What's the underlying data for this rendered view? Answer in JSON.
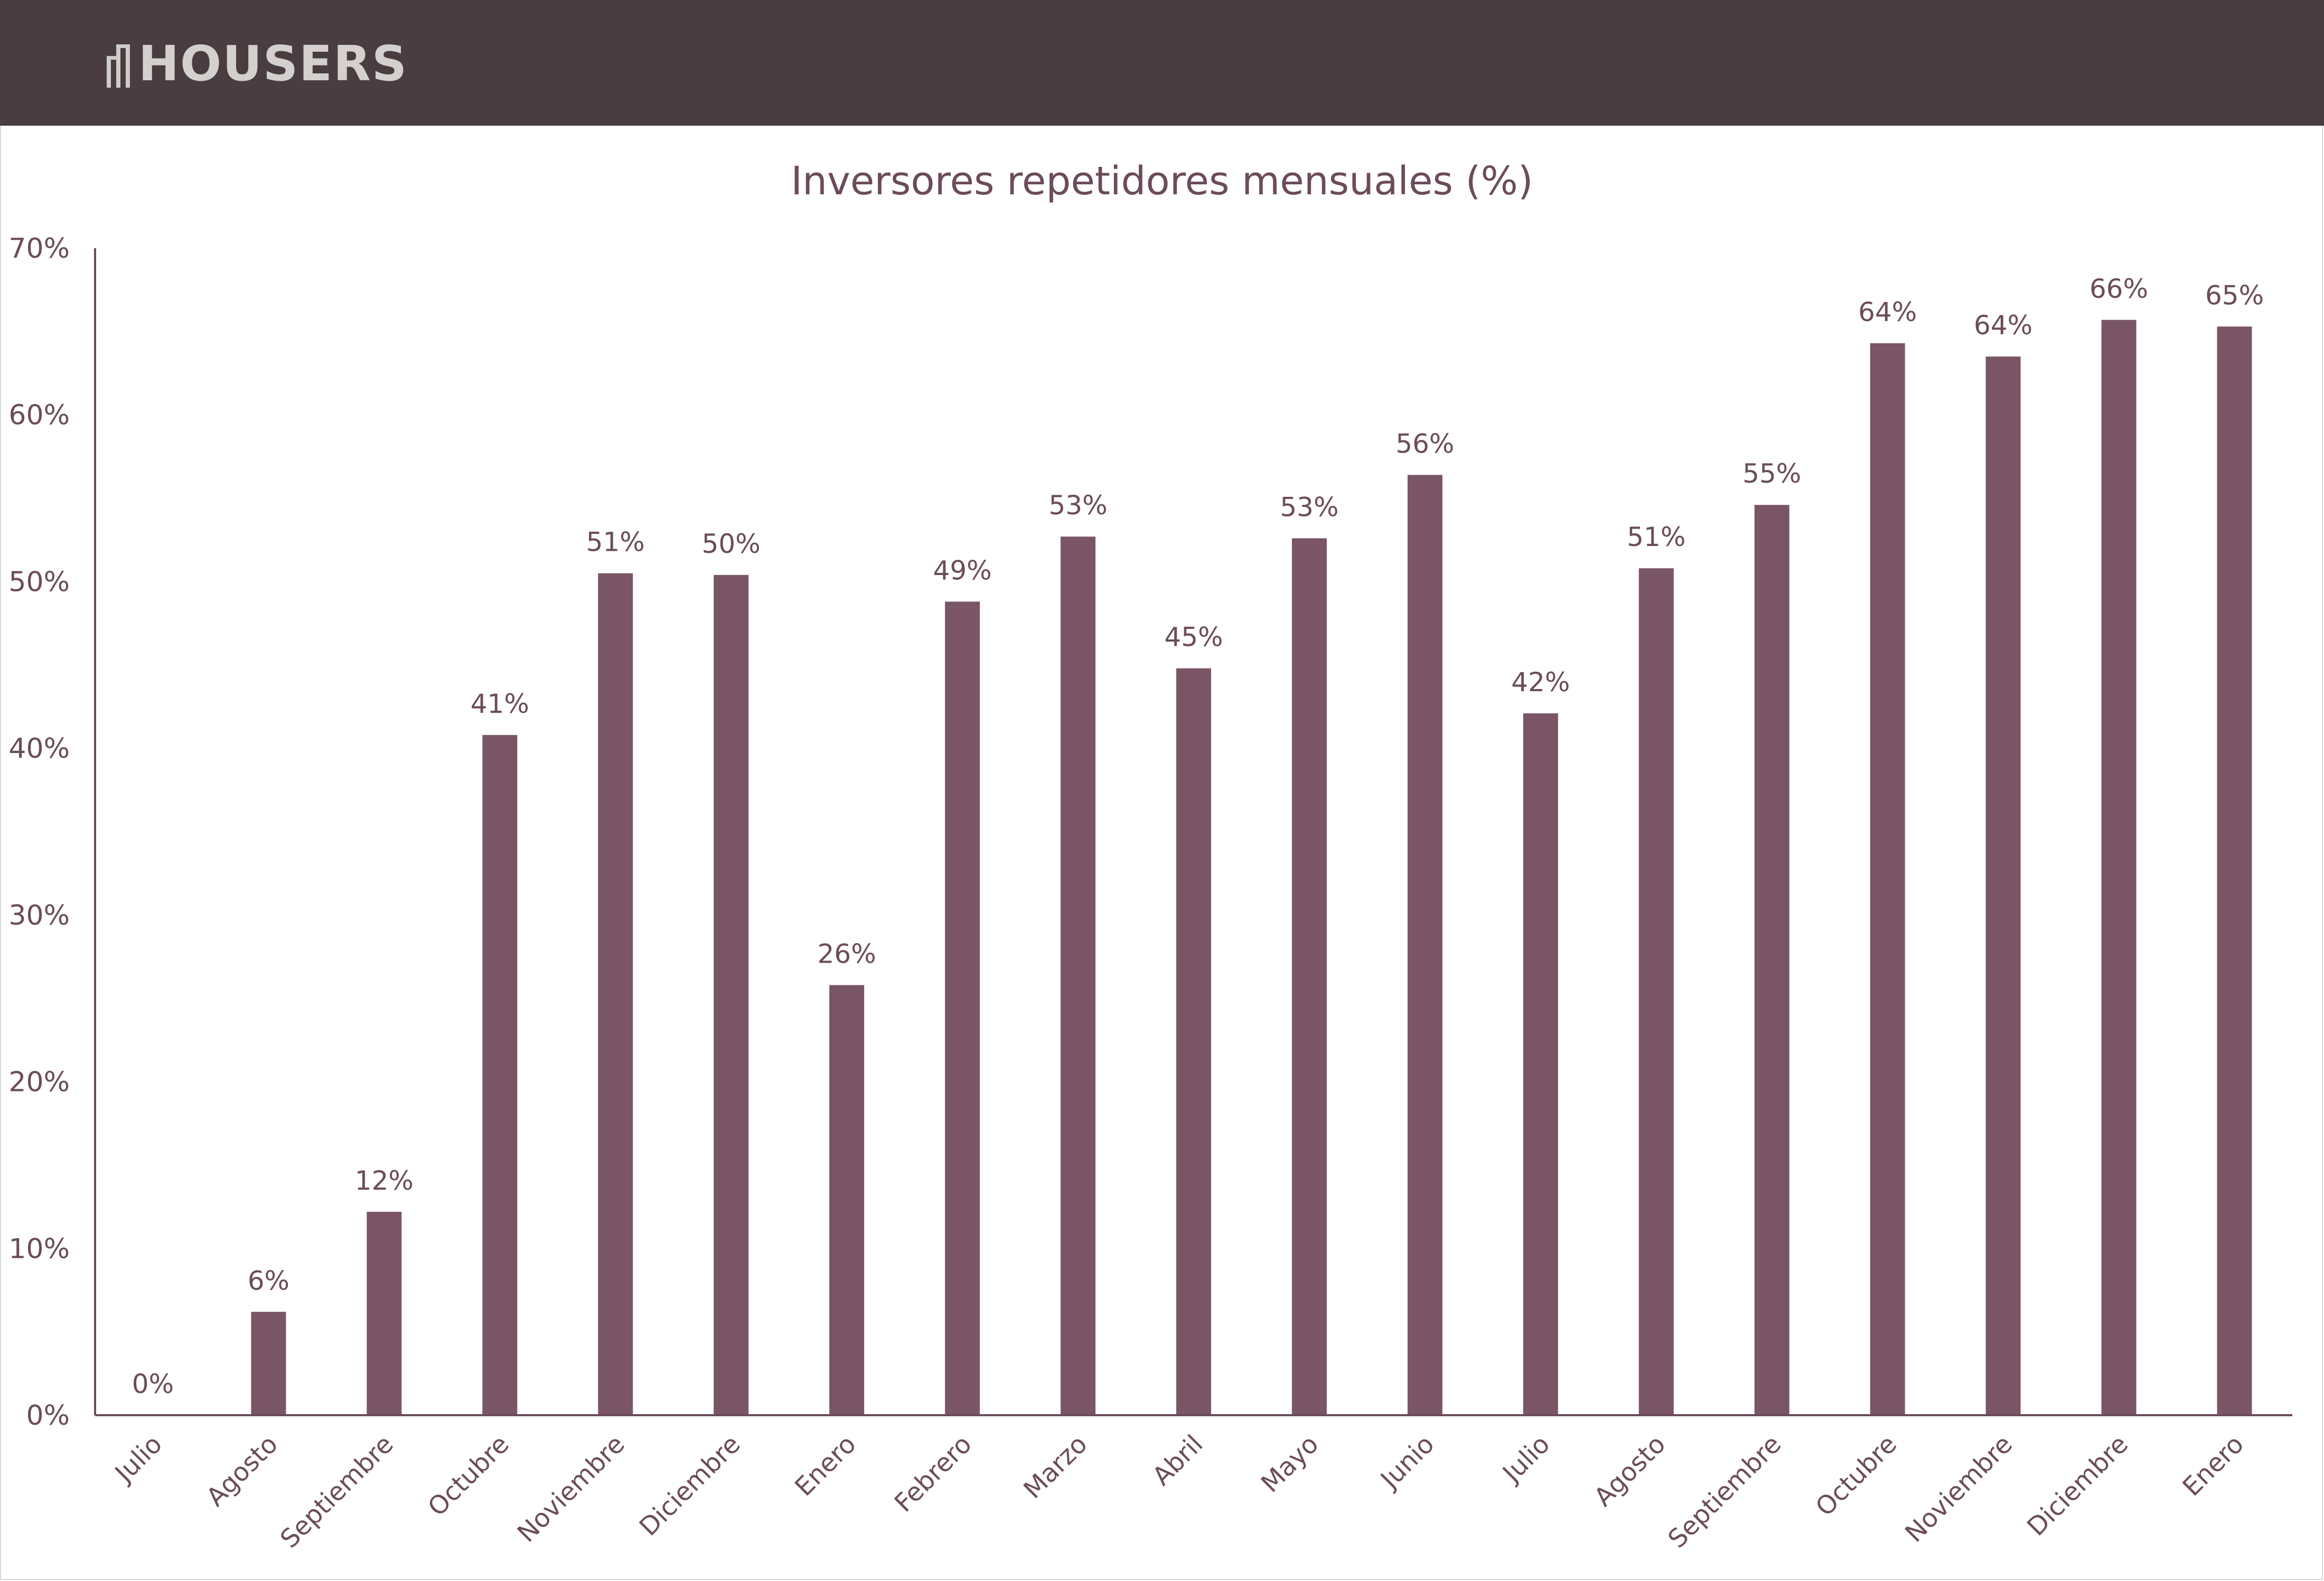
{
  "header": {
    "logo_text": "HOUSERS",
    "background_color": "#493d41"
  },
  "chart_data": {
    "type": "bar",
    "title": "Inversores repetidores mensuales (%)",
    "xlabel": "",
    "ylabel": "",
    "ylim": [
      0,
      70
    ],
    "y_ticks": [
      "0%",
      "10%",
      "20%",
      "30%",
      "40%",
      "50%",
      "60%",
      "70%"
    ],
    "categories": [
      "Julio",
      "Agosto",
      "Septiembre",
      "Octubre",
      "Noviembre",
      "Diciembre",
      "Enero",
      "Febrero",
      "Marzo",
      "Abril",
      "Mayo",
      "Junio",
      "Julio",
      "Agosto",
      "Septiembre",
      "Octubre",
      "Noviembre",
      "Diciembre",
      "Enero"
    ],
    "values": [
      0,
      6.2,
      12.2,
      40.8,
      50.5,
      50.4,
      25.8,
      48.8,
      52.7,
      44.8,
      52.6,
      56.4,
      42.1,
      50.8,
      54.6,
      64.3,
      63.5,
      65.7,
      65.3
    ],
    "data_labels": [
      "0%",
      "6%",
      "12%",
      "41%",
      "51%",
      "50%",
      "26%",
      "49%",
      "53%",
      "45%",
      "53%",
      "56%",
      "42%",
      "51%",
      "55%",
      "64%",
      "64%",
      "66%",
      "65%"
    ],
    "bar_color": "#7a5566",
    "text_color": "#6b4c5b",
    "axis_color": "#6b4c5b",
    "grid": false,
    "legend": "none"
  }
}
